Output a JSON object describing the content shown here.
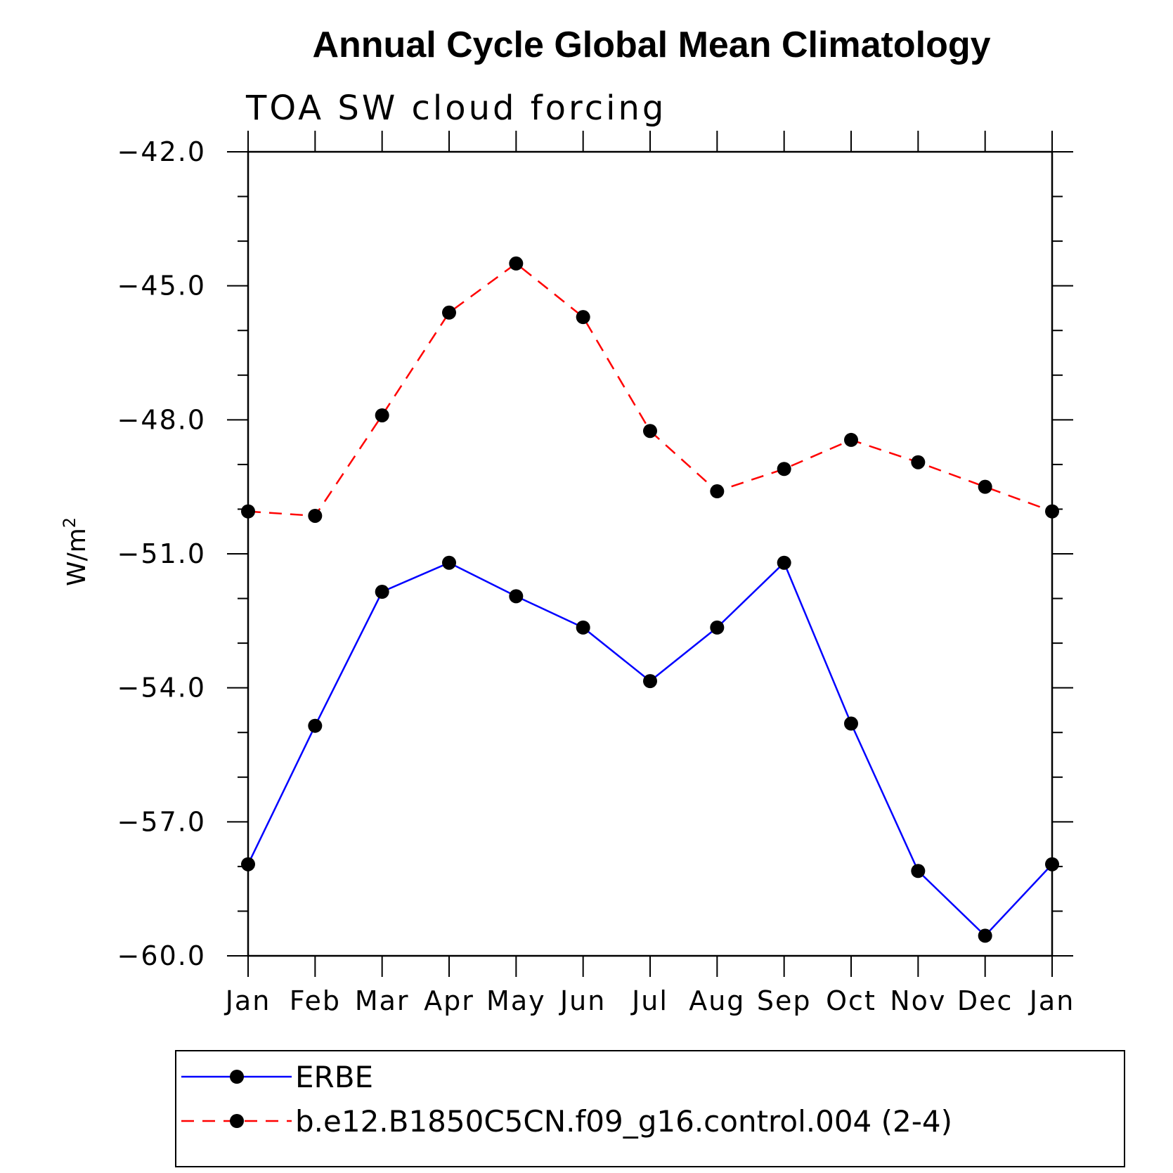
{
  "chart_data": {
    "type": "line",
    "title": "Annual Cycle Global Mean Climatology",
    "subtitle": "TOA SW cloud forcing",
    "ylabel": "W/m",
    "ylabel_superscript": "2",
    "ylim": [
      -60.0,
      -42.0
    ],
    "yticks": [
      "-42.0",
      "-45.0",
      "-48.0",
      "-51.0",
      "-54.0",
      "-57.0",
      "-60.0"
    ],
    "ytick_values": [
      -42,
      -45,
      -48,
      -51,
      -54,
      -57,
      -60
    ],
    "categories": [
      "Jan",
      "Feb",
      "Mar",
      "Apr",
      "May",
      "Jun",
      "Jul",
      "Aug",
      "Sep",
      "Oct",
      "Nov",
      "Dec",
      "Jan"
    ],
    "grid": false,
    "legend_position": "bottom",
    "series": [
      {
        "name": "ERBE",
        "color": "#0000ff",
        "dash": "solid",
        "marker": "filled-circle",
        "values": [
          -57.95,
          -54.85,
          -51.85,
          -51.2,
          -51.95,
          -52.65,
          -53.85,
          -52.65,
          -51.2,
          -54.8,
          -58.1,
          -59.55,
          -57.95
        ]
      },
      {
        "name": "b.e12.B1850C5CN.f09_g16.control.004 (2-4)",
        "color": "#ff0000",
        "dash": "dashed",
        "marker": "filled-circle",
        "values": [
          -50.05,
          -50.15,
          -47.9,
          -45.6,
          -44.5,
          -45.7,
          -48.25,
          -49.6,
          -49.1,
          -48.45,
          -48.95,
          -49.5,
          -50.05
        ]
      }
    ]
  }
}
